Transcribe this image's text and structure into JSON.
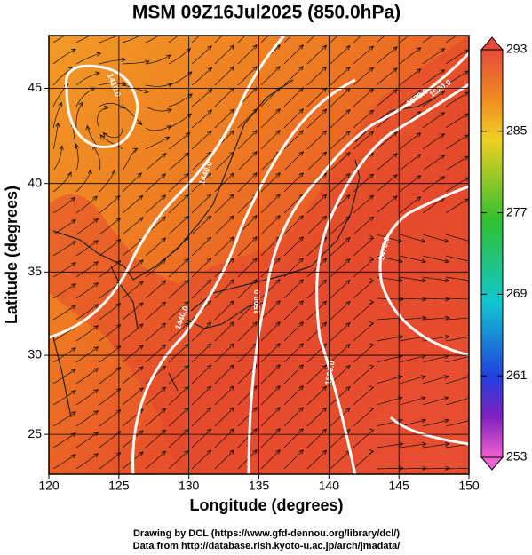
{
  "title": "MSM 09Z16Jul2025 (850.0hPa)",
  "x_axis": {
    "label": "Longitude (degrees)",
    "range": [
      120,
      150
    ],
    "ticks": [
      120,
      125,
      130,
      135,
      140,
      145,
      150
    ]
  },
  "y_axis": {
    "label": "Latitude  (degrees)",
    "range": [
      22.4,
      47.6
    ],
    "projection": "mercator",
    "ticks": [
      25,
      30,
      35,
      40,
      45
    ]
  },
  "colorbar": {
    "range": [
      253,
      293
    ],
    "ticks": [
      253,
      261,
      269,
      277,
      285,
      293
    ]
  },
  "contour_labels": [
    "1410.0",
    "1440.0",
    "1440.0",
    "1470.0",
    "1500.0",
    "1500.0",
    "1520.0",
    "1530.0"
  ],
  "credits": [
    "Drawing by DCL (https://www.gfd-dennou.org/library/dcl/)",
    "Data from http://database.rish.kyoto-u.ac.jp/arch/jmadata/"
  ]
}
